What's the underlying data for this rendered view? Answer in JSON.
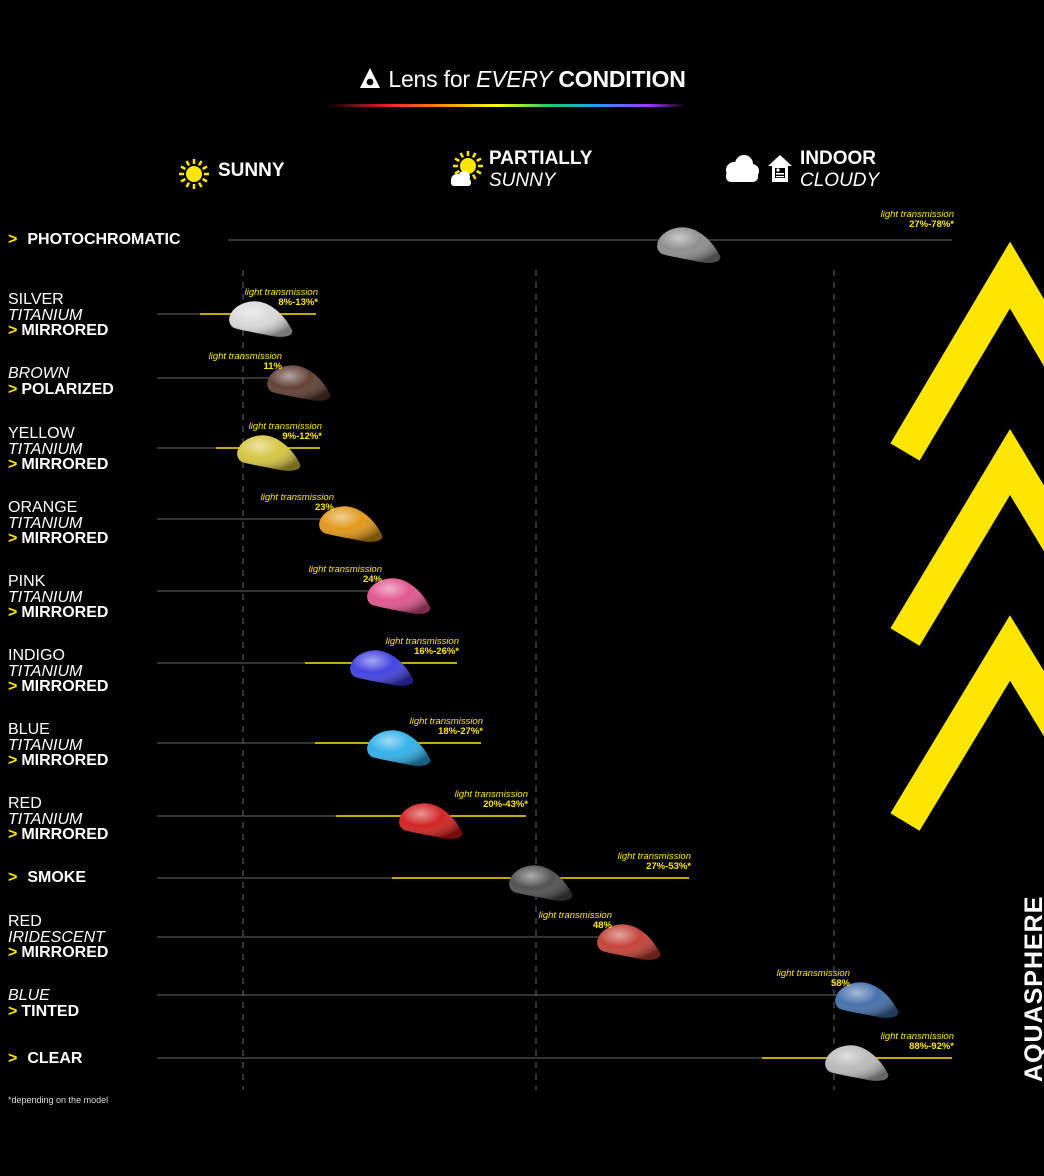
{
  "header": {
    "title_pre": "Lens for ",
    "title_em": "EVERY",
    "title_strong": "CONDITION"
  },
  "conditions": [
    {
      "line1": "SUNNY",
      "line2": "",
      "icon": "sun-icon"
    },
    {
      "line1": "PARTIALLY",
      "line2": "SUNNY",
      "icon": "sun-cloud-icon"
    },
    {
      "line1": "INDOOR",
      "line2": "CLOUDY",
      "icon": "cloud-indoor-icon"
    }
  ],
  "legend_caption": "light transmission",
  "colors": {
    "accent": "#ffe600",
    "background": "#000000",
    "guide": "#555555"
  },
  "chart_data": {
    "type": "scatter",
    "x_scale": [
      "SUNNY",
      "PARTIALLY SUNNY",
      "INDOOR CLOUDY"
    ],
    "rows": [
      {
        "label": [
          {
            "t": "PHOTOCHROMATIC",
            "s": "bold",
            "chev": true
          }
        ],
        "transmission": "27%-78%*",
        "range": [
          27,
          78
        ],
        "lens_color": "#8a8a8a"
      },
      {
        "label": [
          {
            "t": "SILVER",
            "s": "plain"
          },
          {
            "t": "TITANIUM",
            "s": "ital"
          },
          {
            "t": "MIRRORED",
            "s": "bold",
            "chev": true
          }
        ],
        "transmission": "8%-13%*",
        "range": [
          8,
          13
        ],
        "lens_color": "#d8d8d8"
      },
      {
        "label": [
          {
            "t": "BROWN",
            "s": "ital"
          },
          {
            "t": "POLARIZED",
            "s": "bold",
            "chev": true
          }
        ],
        "transmission": "11%",
        "range": [
          11,
          11
        ],
        "lens_color": "#5a382c"
      },
      {
        "label": [
          {
            "t": "YELLOW",
            "s": "plain"
          },
          {
            "t": "TITANIUM",
            "s": "ital"
          },
          {
            "t": "MIRRORED",
            "s": "bold",
            "chev": true
          }
        ],
        "transmission": "9%-12%*",
        "range": [
          9,
          12
        ],
        "lens_color": "#d4c33a"
      },
      {
        "label": [
          {
            "t": "ORANGE",
            "s": "plain"
          },
          {
            "t": "TITANIUM",
            "s": "ital"
          },
          {
            "t": "MIRRORED",
            "s": "bold",
            "chev": true
          }
        ],
        "transmission": "23%",
        "range": [
          23,
          23
        ],
        "lens_color": "#e09410"
      },
      {
        "label": [
          {
            "t": "PINK",
            "s": "plain"
          },
          {
            "t": "TITANIUM",
            "s": "ital"
          },
          {
            "t": "MIRRORED",
            "s": "bold",
            "chev": true
          }
        ],
        "transmission": "24%",
        "range": [
          24,
          24
        ],
        "lens_color": "#e0508a"
      },
      {
        "label": [
          {
            "t": "INDIGO",
            "s": "plain"
          },
          {
            "t": "TITANIUM",
            "s": "ital"
          },
          {
            "t": "MIRRORED",
            "s": "bold",
            "chev": true
          }
        ],
        "transmission": "16%-26%*",
        "range": [
          16,
          26
        ],
        "lens_color": "#3a3ae0"
      },
      {
        "label": [
          {
            "t": "BLUE",
            "s": "plain"
          },
          {
            "t": "TITANIUM",
            "s": "ital"
          },
          {
            "t": "MIRRORED",
            "s": "bold",
            "chev": true
          }
        ],
        "transmission": "18%-27%*",
        "range": [
          18,
          27
        ],
        "lens_color": "#2aaee8"
      },
      {
        "label": [
          {
            "t": "RED",
            "s": "plain"
          },
          {
            "t": "TITANIUM",
            "s": "ital"
          },
          {
            "t": "MIRRORED",
            "s": "bold",
            "chev": true
          }
        ],
        "transmission": "20%-43%*",
        "range": [
          20,
          43
        ],
        "lens_color": "#d01818"
      },
      {
        "label": [
          {
            "t": "SMOKE",
            "s": "bold",
            "chev": true
          }
        ],
        "transmission": "27%-53%*",
        "range": [
          27,
          53
        ],
        "lens_color": "#4a4a4a"
      },
      {
        "label": [
          {
            "t": "RED",
            "s": "plain"
          },
          {
            "t": "IRIDESCENT",
            "s": "ital"
          },
          {
            "t": "MIRRORED",
            "s": "bold",
            "chev": true
          }
        ],
        "transmission": "48%",
        "range": [
          48,
          48
        ],
        "lens_color": "#c23a30"
      },
      {
        "label": [
          {
            "t": "BLUE",
            "s": "ital"
          },
          {
            "t": "TINTED",
            "s": "bold",
            "chev": true
          }
        ],
        "transmission": "58%",
        "range": [
          58,
          58
        ],
        "lens_color": "#3e6aa8"
      },
      {
        "label": [
          {
            "t": "CLEAR",
            "s": "bold",
            "chev": true
          }
        ],
        "transmission": "88%-92%*",
        "range": [
          88,
          92
        ],
        "lens_color": "#b8b8b8"
      }
    ]
  },
  "footnote": "*depending on the model",
  "brand": "AQUASPHERE"
}
